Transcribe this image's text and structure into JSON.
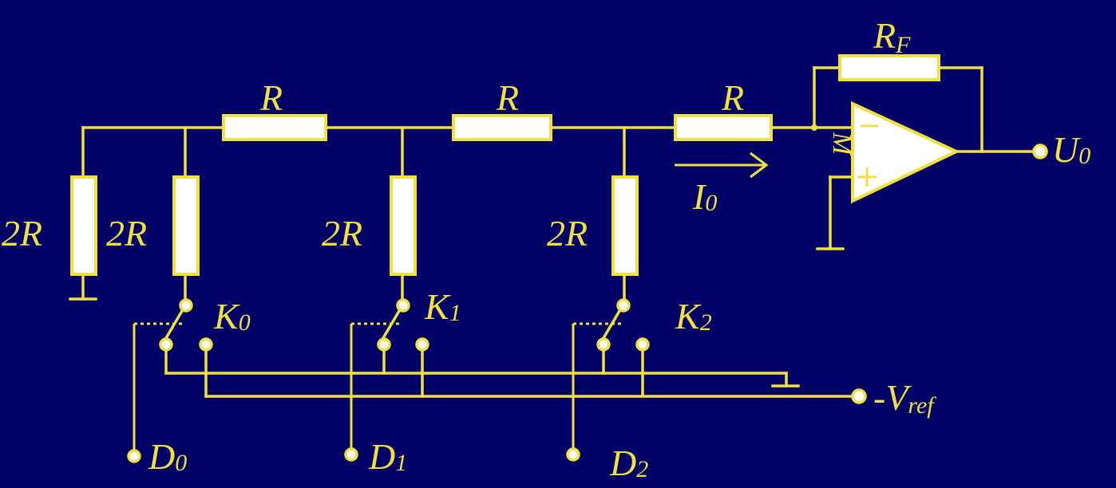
{
  "labels": {
    "r_top_1": "R",
    "r_top_2": "R",
    "r_top_3": "R",
    "r_feedback": "R",
    "r_feedback_sub": "F",
    "r_2r_term": "2R",
    "r_2r_0": "2R",
    "r_2r_1": "2R",
    "r_2r_2": "2R",
    "switch_0": "K",
    "switch_0_sub": "0",
    "switch_1": "K",
    "switch_1_sub": "1",
    "switch_2": "K",
    "switch_2_sub": "2",
    "current": "I",
    "current_sub": "0",
    "output": "U",
    "output_sub": "0",
    "vref": "-V",
    "vref_sub": "ref",
    "d0": "D",
    "d0_sub": "0",
    "d1": "D",
    "d1_sub": "1",
    "d2": "D",
    "d2_sub": "2",
    "node_m": "M",
    "op_minus": "−",
    "op_plus": "+"
  },
  "colors": {
    "background": "#000066",
    "line": "#F0E040",
    "fill": "#FFFFFF"
  }
}
